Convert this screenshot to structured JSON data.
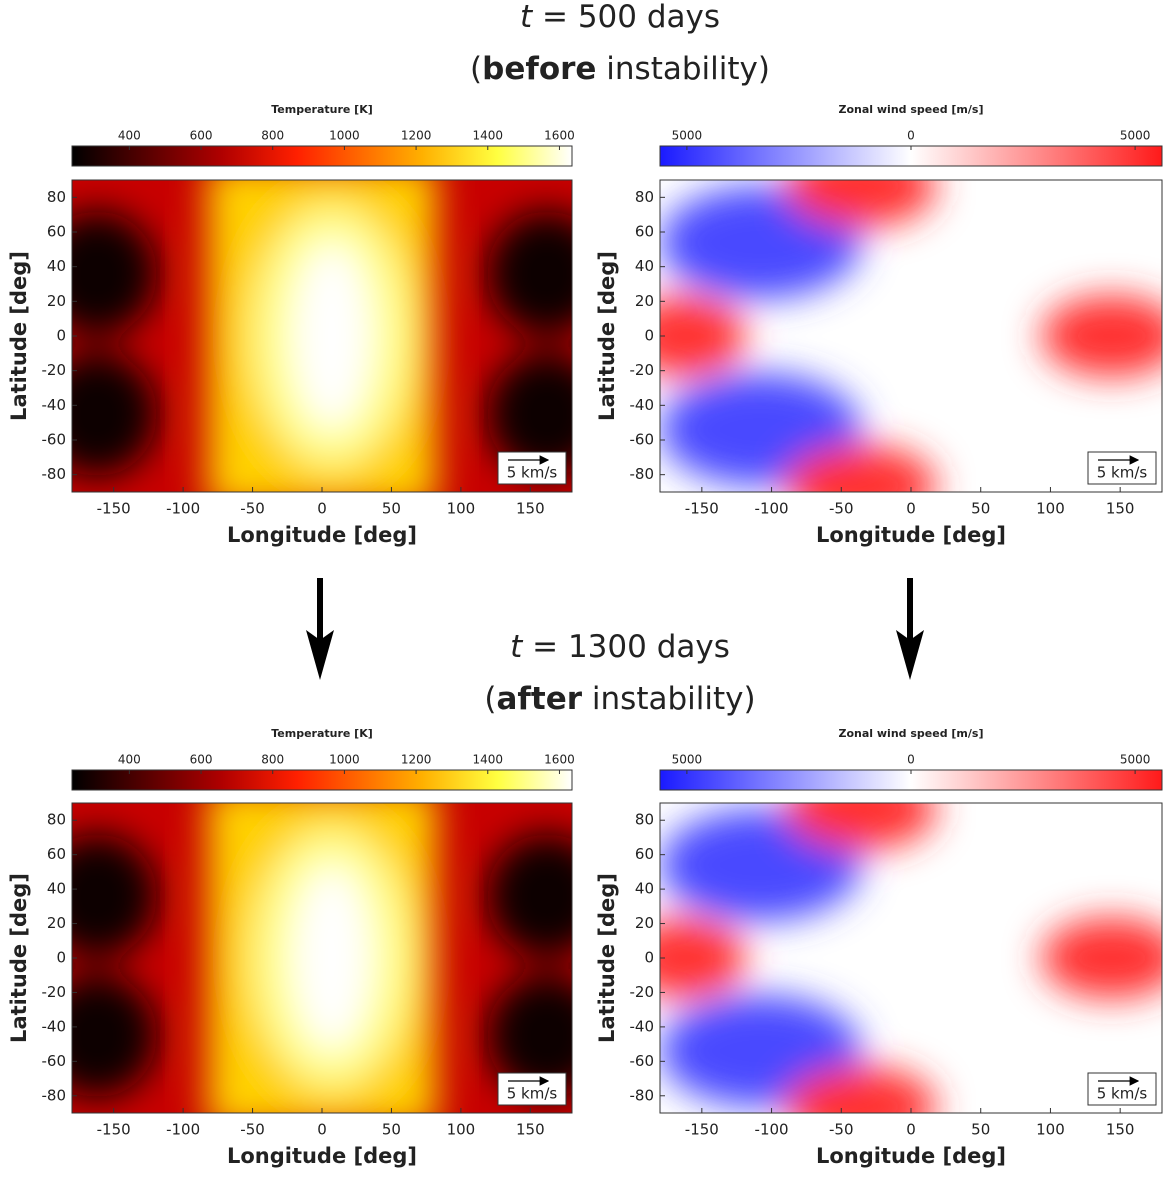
{
  "header_top": {
    "var": "t",
    "text": "= 500 days",
    "open": "(",
    "bold": "before",
    "rest": "instability)"
  },
  "header_bottom": {
    "var": "t",
    "text": "= 1300 days",
    "open": "(",
    "bold": "after",
    "rest": "instability)"
  },
  "chart_data": [
    {
      "type": "heatmap",
      "colormap": "hot",
      "colorbar_label": "Temperature [K]",
      "colorbar_lim": [
        240,
        1635
      ],
      "colorbar_ticks": [
        400,
        600,
        800,
        1000,
        1200,
        1400,
        1600
      ],
      "xlabel": "Longitude [deg]",
      "ylabel": "Latitude [deg]",
      "xlim": [
        -180,
        180
      ],
      "xticks": [
        -150,
        -100,
        -50,
        0,
        50,
        100,
        150
      ],
      "ylim": [
        -90,
        90
      ],
      "yticks": [
        -80,
        -60,
        -40,
        -20,
        0,
        20,
        40,
        60,
        80
      ],
      "scale_label": "5 km/s"
    },
    {
      "type": "heatmap",
      "colormap": "bwr",
      "colorbar_label": "Zonal wind speed [m/s]",
      "colorbar_lim": [
        -5600,
        5600
      ],
      "colorbar_ticks": [
        {
          "value": -5000,
          "label": "5000"
        },
        0,
        5000
      ],
      "xlabel": "Longitude [deg]",
      "ylabel": "Latitude [deg]",
      "xlim": [
        -180,
        180
      ],
      "xticks": [
        -150,
        -100,
        -50,
        0,
        50,
        100,
        150
      ],
      "ylim": [
        -90,
        90
      ],
      "yticks": [
        -80,
        -60,
        -40,
        -20,
        0,
        20,
        40,
        60,
        80
      ],
      "scale_label": "5 km/s"
    },
    {
      "type": "heatmap",
      "colormap": "hot",
      "colorbar_label": "Temperature [K]",
      "colorbar_lim": [
        240,
        1635
      ],
      "colorbar_ticks": [
        400,
        600,
        800,
        1000,
        1200,
        1400,
        1600
      ],
      "xlabel": "Longitude [deg]",
      "ylabel": "Latitude [deg]",
      "xlim": [
        -180,
        180
      ],
      "xticks": [
        -150,
        -100,
        -50,
        0,
        50,
        100,
        150
      ],
      "ylim": [
        -90,
        90
      ],
      "yticks": [
        -80,
        -60,
        -40,
        -20,
        0,
        20,
        40,
        60,
        80
      ],
      "scale_label": "5 km/s"
    },
    {
      "type": "heatmap",
      "colormap": "bwr",
      "colorbar_label": "Zonal wind speed [m/s]",
      "colorbar_lim": [
        -5600,
        5600
      ],
      "colorbar_ticks": [
        {
          "value": -5000,
          "label": "5000"
        },
        0,
        5000
      ],
      "xlabel": "Longitude [deg]",
      "ylabel": "Latitude [deg]",
      "xlim": [
        -180,
        180
      ],
      "xticks": [
        -150,
        -100,
        -50,
        0,
        50,
        100,
        150
      ],
      "ylim": [
        -90,
        90
      ],
      "yticks": [
        -80,
        -60,
        -40,
        -20,
        0,
        20,
        40,
        60,
        80
      ],
      "scale_label": "5 km/s"
    }
  ]
}
